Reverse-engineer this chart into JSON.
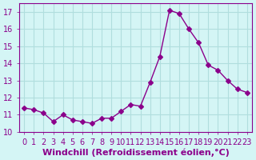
{
  "x": [
    0,
    1,
    2,
    3,
    4,
    5,
    6,
    7,
    8,
    9,
    10,
    11,
    12,
    13,
    14,
    15,
    16,
    17,
    18,
    19,
    20,
    21,
    22,
    23
  ],
  "y": [
    11.4,
    11.3,
    11.1,
    10.6,
    11.0,
    10.7,
    10.6,
    10.5,
    10.8,
    10.8,
    11.2,
    11.6,
    11.5,
    12.9,
    14.4,
    17.1,
    16.9,
    16.0,
    15.2,
    13.9,
    13.6,
    13.0,
    12.5,
    12.3
  ],
  "line_color": "#8B008B",
  "marker": "D",
  "marker_size": 3,
  "bg_color": "#d4f5f5",
  "grid_color": "#b0dede",
  "xlabel": "Windchill (Refroidissement éolien,°C)",
  "xlabel_color": "#8B008B",
  "ylim": [
    10,
    17.5
  ],
  "xlim": [
    -0.5,
    23.5
  ],
  "yticks": [
    10,
    11,
    12,
    13,
    14,
    15,
    16,
    17
  ],
  "xticks": [
    0,
    1,
    2,
    3,
    4,
    5,
    6,
    7,
    8,
    9,
    10,
    11,
    12,
    13,
    14,
    15,
    16,
    17,
    18,
    19,
    20,
    21,
    22,
    23
  ],
  "tick_label_size": 7,
  "xlabel_size": 8
}
